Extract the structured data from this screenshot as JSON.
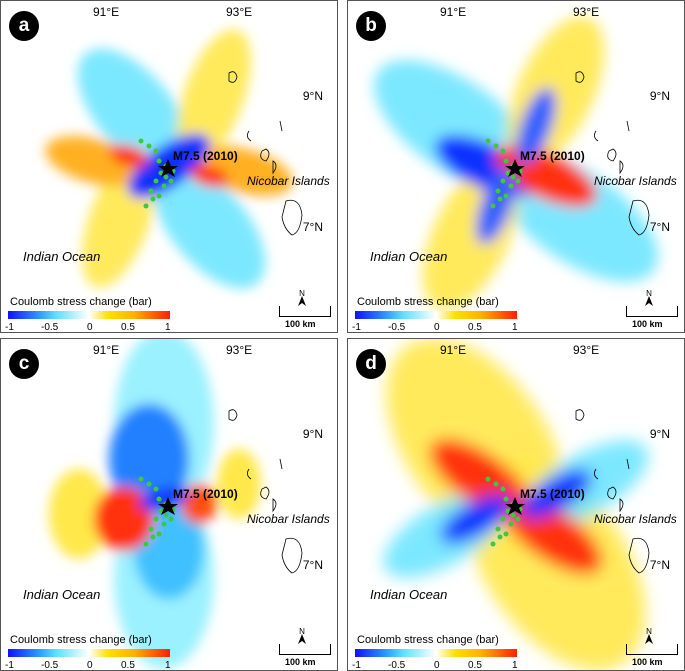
{
  "panels": [
    {
      "letter": "a",
      "dominant": "mixed"
    },
    {
      "letter": "b",
      "dominant": "mixed"
    },
    {
      "letter": "c",
      "dominant": "negative"
    },
    {
      "letter": "d",
      "dominant": "positive"
    }
  ],
  "map": {
    "lon_labels": [
      "91°E",
      "93°E"
    ],
    "lat_labels": [
      "9°N",
      "7°N"
    ],
    "earthquake_label": "M7.5 (2010)",
    "region_label": "Nicobar Islands",
    "ocean_label": "Indian Ocean",
    "colorbar_title": "Coulomb stress change (bar)",
    "colorbar_ticks": [
      "-1",
      "-0.5",
      "0",
      "0.5",
      "1"
    ],
    "scale_label": "100 km",
    "north_label": "N"
  },
  "colors": {
    "negative_strong": "#1010ff",
    "negative_weak": "#60e0ff",
    "positive_weak": "#ffe000",
    "positive_strong": "#ff2000",
    "aftershock": "#3ec83e"
  }
}
